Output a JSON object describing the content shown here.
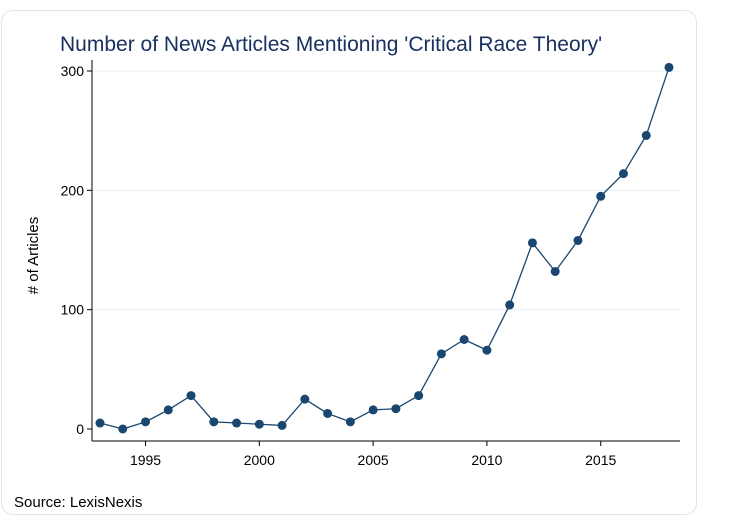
{
  "chart_data": {
    "type": "line",
    "title": "Number of News Articles Mentioning 'Critical Race Theory'",
    "xlabel": "",
    "ylabel": "# of Articles",
    "source_note": "Source: LexisNexis",
    "xlim": [
      1993,
      2018
    ],
    "ylim": [
      0,
      300
    ],
    "xticks": [
      1995,
      2000,
      2005,
      2010,
      2015
    ],
    "yticks": [
      0,
      100,
      200,
      300
    ],
    "grid": true,
    "legend": "none",
    "colors": {
      "series": "#1a476f",
      "title": "#1a3160",
      "grid": "#e9eef2"
    },
    "x": [
      1993,
      1994,
      1995,
      1996,
      1997,
      1998,
      1999,
      2000,
      2001,
      2002,
      2003,
      2004,
      2005,
      2006,
      2007,
      2008,
      2009,
      2010,
      2011,
      2012,
      2013,
      2014,
      2015,
      2016,
      2017,
      2018
    ],
    "series": [
      {
        "values": [
          5,
          0,
          6,
          16,
          28,
          6,
          5,
          4,
          3,
          25,
          13,
          6,
          16,
          17,
          28,
          63,
          75,
          66,
          104,
          156,
          132,
          158,
          195,
          214,
          246,
          303
        ]
      }
    ]
  }
}
